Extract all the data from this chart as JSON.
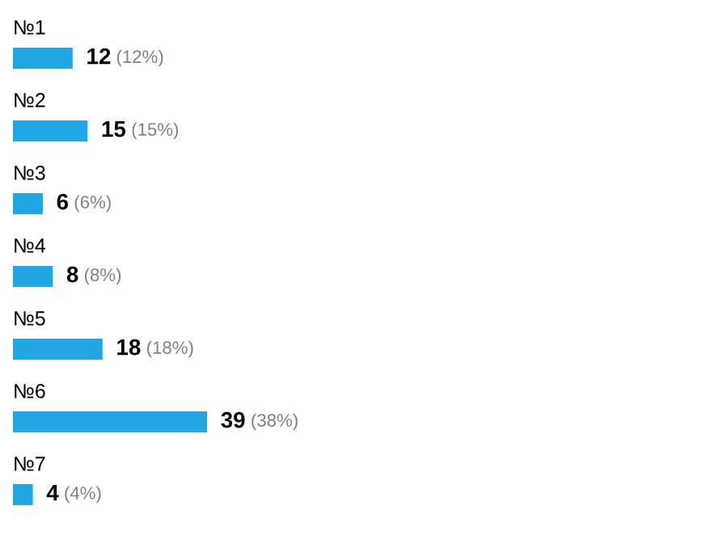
{
  "chart_data": {
    "type": "bar",
    "orientation": "horizontal",
    "categories": [
      "№1",
      "№2",
      "№3",
      "№4",
      "№5",
      "№6",
      "№7"
    ],
    "values": [
      12,
      15,
      6,
      8,
      18,
      39,
      4
    ],
    "value_labels": [
      "12 (12%)",
      "15 (15%)",
      "6 (6%)",
      "8 (8%)",
      "18 (18%)",
      "39 (38%)",
      "4 (4%)"
    ],
    "color": "#22a6e6"
  }
}
